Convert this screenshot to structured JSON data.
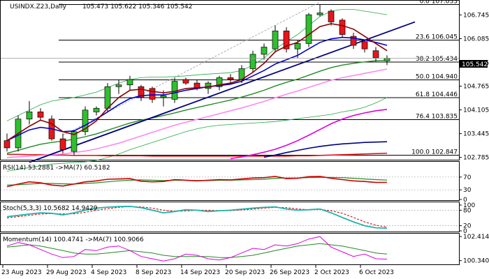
{
  "header": {
    "symbol_label": "USINDX.Z23,Daily",
    "ohlc_label": "105.473 105.622 105.346 105.542"
  },
  "current_price_label": "105.542",
  "colors": {
    "bull": "#2fbf2f",
    "bear": "#e8151b",
    "blue_line": "#0000cc",
    "navy_line": "#000080",
    "dark_red_line": "#8b0000",
    "green_ma": "#228b22",
    "magenta": "#dd00dd",
    "pink": "#ff88ee",
    "bollinger": "#22aa44",
    "rsi_line": "#cc0000",
    "rsi_ma": "#228b22",
    "stoch_main": "#20b2aa",
    "stoch_signal": "#cc0000",
    "momentum": "#dd00dd",
    "momentum_ma": "#228b22"
  },
  "chart_data": [
    {
      "type": "candlestick",
      "panel": "price",
      "ylim": [
        102.72,
        107.14
      ],
      "y_ticks": [
        "106.745",
        "106.085",
        "105.415",
        "104.765",
        "104.105",
        "103.445",
        "102.785"
      ],
      "x_ticks": [
        "23 Aug 2023",
        "29 Aug 2023",
        "4 Sep 2023",
        "8 Sep 2023",
        "14 Sep 2023",
        "20 Sep 2023",
        "26 Sep 2023",
        "2 Oct 2023",
        "6 Oct 2023"
      ],
      "x_tick_index": [
        0,
        4,
        8,
        12,
        16,
        20,
        24,
        28,
        32
      ],
      "fibonacci": [
        {
          "label": "0.0 107.033",
          "value": 107.033
        },
        {
          "label": "23.6 106.045",
          "value": 106.045
        },
        {
          "label": "38.2 105.434",
          "value": 105.434
        },
        {
          "label": "50.0 104.940",
          "value": 104.94
        },
        {
          "label": "61.8 104.446",
          "value": 104.446
        },
        {
          "label": "76.4 103.835",
          "value": 103.835
        },
        {
          "label": "100.0 102.847",
          "value": 102.847
        }
      ],
      "candles": [
        {
          "o": 103.25,
          "h": 103.45,
          "l": 102.95,
          "c": 103.05
        },
        {
          "o": 103.05,
          "h": 103.95,
          "l": 102.95,
          "c": 103.85
        },
        {
          "o": 103.85,
          "h": 104.35,
          "l": 103.7,
          "c": 104.05
        },
        {
          "o": 104.05,
          "h": 104.15,
          "l": 103.8,
          "c": 103.9
        },
        {
          "o": 103.85,
          "h": 103.95,
          "l": 103.25,
          "c": 103.3
        },
        {
          "o": 103.3,
          "h": 103.45,
          "l": 102.9,
          "c": 103.0
        },
        {
          "o": 102.95,
          "h": 103.55,
          "l": 102.85,
          "c": 103.5
        },
        {
          "o": 103.5,
          "h": 104.2,
          "l": 103.4,
          "c": 104.1
        },
        {
          "o": 104.05,
          "h": 104.2,
          "l": 103.95,
          "c": 104.15
        },
        {
          "o": 104.15,
          "h": 104.85,
          "l": 104.05,
          "c": 104.75
        },
        {
          "o": 104.75,
          "h": 104.95,
          "l": 104.55,
          "c": 104.8
        },
        {
          "o": 104.8,
          "h": 105.05,
          "l": 104.65,
          "c": 104.95
        },
        {
          "o": 104.75,
          "h": 104.8,
          "l": 104.35,
          "c": 104.45
        },
        {
          "o": 104.7,
          "h": 104.75,
          "l": 104.3,
          "c": 104.4
        },
        {
          "o": 104.45,
          "h": 104.65,
          "l": 104.2,
          "c": 104.5
        },
        {
          "o": 104.4,
          "h": 105.0,
          "l": 104.3,
          "c": 104.9
        },
        {
          "o": 104.95,
          "h": 105.0,
          "l": 104.8,
          "c": 104.85
        },
        {
          "o": 104.85,
          "h": 104.95,
          "l": 104.65,
          "c": 104.7
        },
        {
          "o": 104.7,
          "h": 104.9,
          "l": 104.55,
          "c": 104.85
        },
        {
          "o": 104.75,
          "h": 105.05,
          "l": 104.65,
          "c": 105.0
        },
        {
          "o": 105.0,
          "h": 105.1,
          "l": 104.85,
          "c": 104.95
        },
        {
          "o": 104.95,
          "h": 105.35,
          "l": 104.85,
          "c": 105.25
        },
        {
          "o": 105.25,
          "h": 105.75,
          "l": 105.15,
          "c": 105.65
        },
        {
          "o": 105.65,
          "h": 105.95,
          "l": 105.5,
          "c": 105.85
        },
        {
          "o": 105.8,
          "h": 106.45,
          "l": 105.7,
          "c": 106.3
        },
        {
          "o": 106.3,
          "h": 106.4,
          "l": 105.7,
          "c": 105.8
        },
        {
          "o": 105.8,
          "h": 106.05,
          "l": 105.55,
          "c": 105.95
        },
        {
          "o": 105.95,
          "h": 106.8,
          "l": 105.85,
          "c": 106.75
        },
        {
          "o": 106.75,
          "h": 107.03,
          "l": 106.7,
          "c": 106.8
        },
        {
          "o": 106.85,
          "h": 106.9,
          "l": 106.45,
          "c": 106.55
        },
        {
          "o": 106.6,
          "h": 106.65,
          "l": 106.1,
          "c": 106.2
        },
        {
          "o": 106.15,
          "h": 106.25,
          "l": 105.8,
          "c": 105.9
        },
        {
          "o": 106.0,
          "h": 106.05,
          "l": 105.7,
          "c": 105.8
        },
        {
          "o": 105.75,
          "h": 105.85,
          "l": 105.45,
          "c": 105.55
        },
        {
          "o": 105.47,
          "h": 105.62,
          "l": 105.35,
          "c": 105.54
        }
      ],
      "ma_blue": [
        103.25,
        103.4,
        103.55,
        103.62,
        103.58,
        103.5,
        103.52,
        103.68,
        103.85,
        104.05,
        104.25,
        104.42,
        104.5,
        104.52,
        104.52,
        104.58,
        104.65,
        104.7,
        104.75,
        104.78,
        104.82,
        104.9,
        105.05,
        105.2,
        105.38,
        105.5,
        105.62,
        105.8,
        105.98,
        106.08,
        106.12,
        106.1,
        106.05,
        105.98,
        105.9
      ],
      "ma_dark_red": [
        103.25,
        103.45,
        103.65,
        103.82,
        103.72,
        103.5,
        103.42,
        103.58,
        103.8,
        104.15,
        104.45,
        104.65,
        104.68,
        104.62,
        104.58,
        104.62,
        104.7,
        104.72,
        104.74,
        104.8,
        104.85,
        104.95,
        105.15,
        105.4,
        105.72,
        105.88,
        105.98,
        106.2,
        106.42,
        106.5,
        106.45,
        106.35,
        106.15,
        105.95,
        105.75
      ],
      "ma_green": [
        102.9,
        102.98,
        103.07,
        103.15,
        103.2,
        103.24,
        103.29,
        103.36,
        103.44,
        103.54,
        103.64,
        103.74,
        103.82,
        103.88,
        103.95,
        104.02,
        104.1,
        104.17,
        104.24,
        104.31,
        104.38,
        104.46,
        104.55,
        104.65,
        104.77,
        104.87,
        104.96,
        105.07,
        105.18,
        105.28,
        105.35,
        105.4,
        105.44,
        105.47,
        105.48
      ],
      "ma_pink": [
        102.78,
        102.8,
        102.82,
        102.84,
        102.86,
        102.88,
        102.92,
        102.96,
        103.02,
        103.1,
        103.18,
        103.28,
        103.38,
        103.48,
        103.58,
        103.68,
        103.76,
        103.84,
        103.92,
        104.0,
        104.08,
        104.16,
        104.25,
        104.34,
        104.44,
        104.54,
        104.63,
        104.73,
        104.83,
        104.93,
        105.0,
        105.06,
        105.12,
        105.18,
        105.24
      ],
      "ma_magenta": [
        null,
        null,
        null,
        null,
        null,
        null,
        null,
        null,
        null,
        null,
        null,
        null,
        null,
        null,
        null,
        null,
        null,
        null,
        null,
        null,
        102.75,
        102.8,
        102.86,
        102.93,
        103.01,
        103.12,
        103.25,
        103.4,
        103.56,
        103.72,
        103.85,
        103.95,
        104.02,
        104.08,
        104.12
      ],
      "ma_navy": [
        null,
        null,
        null,
        null,
        null,
        null,
        null,
        null,
        null,
        null,
        null,
        null,
        null,
        null,
        null,
        null,
        null,
        null,
        null,
        null,
        null,
        null,
        null,
        102.79,
        102.85,
        102.92,
        102.98,
        103.04,
        103.09,
        103.13,
        103.16,
        103.18,
        103.2,
        103.21,
        103.22
      ],
      "ma_red_flat": [
        102.87,
        102.87,
        102.86,
        102.86,
        102.85,
        102.85,
        102.84,
        102.84,
        102.84,
        102.83,
        102.83,
        102.83,
        102.83,
        102.82,
        102.82,
        102.82,
        102.82,
        102.82,
        102.82,
        102.82,
        102.82,
        102.82,
        102.82,
        102.82,
        102.82,
        102.82,
        102.83,
        102.83,
        102.84,
        102.85,
        102.86,
        102.87,
        102.88,
        102.89,
        102.9
      ],
      "boll_upper": [
        103.8,
        103.95,
        104.1,
        104.25,
        104.35,
        104.4,
        104.45,
        104.52,
        104.6,
        104.72,
        104.85,
        104.95,
        105.0,
        105.02,
        105.02,
        105.03,
        105.05,
        105.08,
        105.1,
        105.12,
        105.14,
        105.2,
        105.35,
        105.55,
        105.8,
        106.0,
        106.2,
        106.45,
        106.7,
        106.85,
        106.9,
        106.9,
        106.85,
        106.8,
        106.75
      ],
      "boll_lower": [
        102.4,
        102.45,
        102.5,
        102.55,
        102.6,
        102.62,
        102.64,
        102.66,
        102.7,
        102.78,
        102.88,
        103.0,
        103.1,
        103.2,
        103.3,
        103.4,
        103.5,
        103.58,
        103.64,
        103.68,
        103.7,
        103.72,
        103.74,
        103.76,
        103.78,
        103.82,
        103.86,
        103.9,
        103.94,
        103.98,
        104.05,
        104.1,
        104.18,
        104.3,
        104.45
      ],
      "trendlines": [
        {
          "name": "navy-trend",
          "from": {
            "i": 2,
            "v": 102.65
          },
          "to": {
            "i": 36.5,
            "v": 106.55
          }
        },
        {
          "name": "dashed-channel",
          "from": {
            "i": 5,
            "v": 103.4
          },
          "to": {
            "i": 28,
            "v": 107.1
          }
        }
      ]
    },
    {
      "type": "line",
      "panel": "rsi",
      "title": "RSI(14) 53.2881 ->MA(7) 60.5182",
      "ylim": [
        0,
        100
      ],
      "y_ticks": [
        "70",
        "30",
        "0"
      ],
      "levels": [
        70,
        30
      ],
      "series": [
        {
          "name": "RSI",
          "values": [
            40,
            48,
            55,
            52,
            45,
            42,
            48,
            55,
            58,
            63,
            64,
            65,
            57,
            55,
            56,
            62,
            60,
            58,
            60,
            62,
            61,
            64,
            67,
            68,
            72,
            65,
            66,
            71,
            72,
            66,
            62,
            58,
            56,
            53,
            53.29
          ]
        },
        {
          "name": "MA",
          "values": [
            45,
            46,
            48,
            50,
            50,
            49,
            48,
            50,
            52,
            55,
            58,
            60,
            61,
            60,
            59,
            60,
            60,
            59,
            59,
            60,
            60,
            61,
            62,
            63,
            66,
            67,
            67,
            68,
            69,
            69,
            68,
            66,
            64,
            62,
            60.52
          ]
        }
      ]
    },
    {
      "type": "line",
      "panel": "stochastic",
      "title": "Stoch(5,3,3) 10.5682 14.9429",
      "ylim": [
        0,
        100
      ],
      "y_ticks": [
        "100",
        "80",
        "20",
        "0"
      ],
      "levels": [
        80,
        20
      ],
      "series": [
        {
          "name": "Main",
          "values": [
            55,
            60,
            65,
            70,
            68,
            62,
            70,
            80,
            88,
            92,
            94,
            95,
            90,
            80,
            70,
            75,
            82,
            80,
            75,
            78,
            80,
            84,
            88,
            91,
            93,
            85,
            80,
            82,
            85,
            70,
            52,
            35,
            20,
            12,
            10.57
          ]
        },
        {
          "name": "Signal",
          "values": [
            50,
            55,
            60,
            65,
            67,
            66,
            66,
            72,
            80,
            86,
            91,
            94,
            93,
            88,
            80,
            76,
            77,
            80,
            80,
            78,
            78,
            81,
            84,
            88,
            91,
            90,
            85,
            82,
            83,
            78,
            68,
            52,
            35,
            22,
            14.94
          ]
        }
      ]
    },
    {
      "type": "line",
      "panel": "momentum",
      "title": "Momentum(14) 100.4741 ->MA(7) 100.9066",
      "ylim": [
        100.08,
        102.6
      ],
      "y_ticks": [
        "102.4141",
        "100.3406"
      ],
      "series": [
        {
          "name": "Momentum",
          "values": [
            101.6,
            101.9,
            101.7,
            101.3,
            100.9,
            100.6,
            100.7,
            101.3,
            101.2,
            101.5,
            101.6,
            101.2,
            100.7,
            100.5,
            100.3,
            100.5,
            100.9,
            100.8,
            100.5,
            100.4,
            100.6,
            101.0,
            101.4,
            101.3,
            101.7,
            101.6,
            101.8,
            102.2,
            102.41,
            101.5,
            101.1,
            100.7,
            100.9,
            100.5,
            100.47
          ]
        },
        {
          "name": "MA",
          "values": [
            101.5,
            101.6,
            101.7,
            101.6,
            101.4,
            101.2,
            101.0,
            100.9,
            100.9,
            101.0,
            101.1,
            101.2,
            101.1,
            101.0,
            100.8,
            100.7,
            100.7,
            100.7,
            100.7,
            100.6,
            100.6,
            100.7,
            100.8,
            101.0,
            101.2,
            101.4,
            101.6,
            101.7,
            101.8,
            101.7,
            101.6,
            101.4,
            101.2,
            101.0,
            100.91
          ]
        }
      ]
    }
  ]
}
